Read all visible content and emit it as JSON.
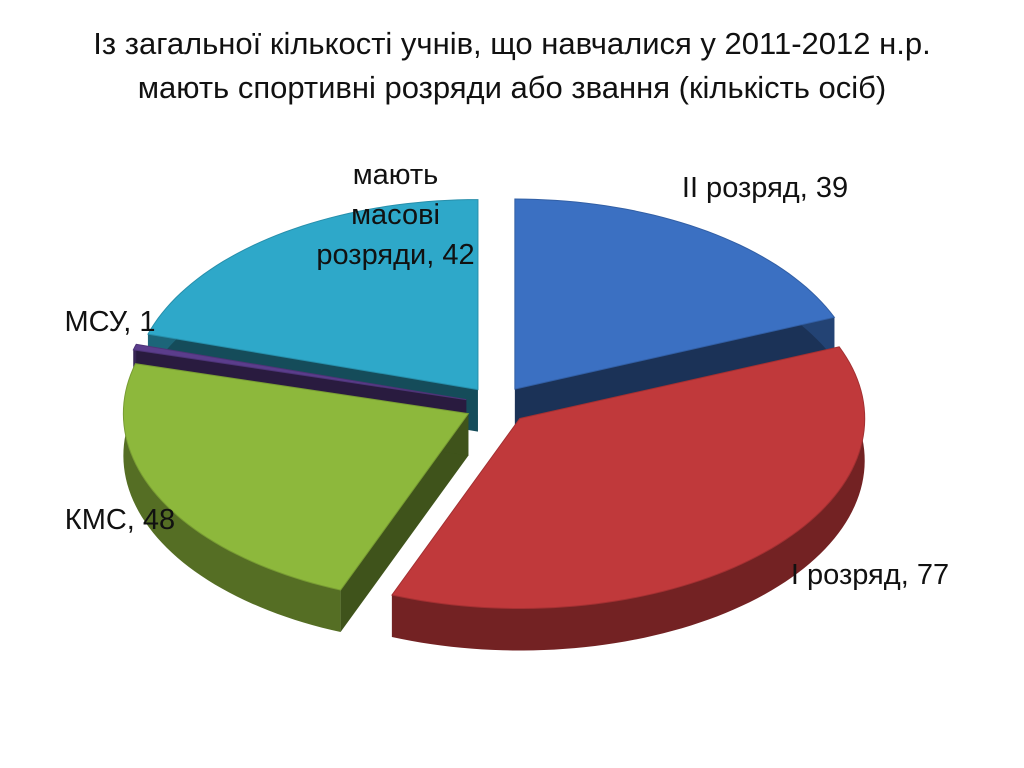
{
  "chart_data": {
    "type": "pie3d",
    "title": "Із загальної кількості учнів, що навчалися у 2011-2012 н.р. мають спортивні розряди або звання (кількість осіб)",
    "categories": [
      "II розряд",
      "I розряд",
      "КМС",
      "МСУ",
      "мають масові розряди"
    ],
    "values": [
      39,
      77,
      48,
      1,
      42
    ],
    "colors": [
      "#3b70c2",
      "#c0393b",
      "#8db83c",
      "#5b3d8c",
      "#2ea8c9"
    ],
    "label_separator": ","
  }
}
